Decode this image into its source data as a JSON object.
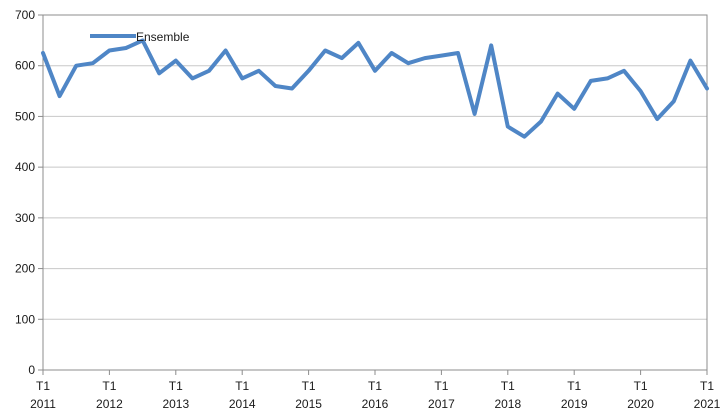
{
  "chart_data": {
    "type": "line",
    "title": "",
    "xlabel": "",
    "ylabel": "",
    "ylim": [
      0,
      700
    ],
    "yticks": [
      0,
      100,
      200,
      300,
      400,
      500,
      600,
      700
    ],
    "grid": "horizontal",
    "legend": "top-left",
    "xtick_labels": [
      {
        "quarter": "T1",
        "year": "2011"
      },
      {
        "quarter": "T1",
        "year": "2012"
      },
      {
        "quarter": "T1",
        "year": "2013"
      },
      {
        "quarter": "T1",
        "year": "2014"
      },
      {
        "quarter": "T1",
        "year": "2015"
      },
      {
        "quarter": "T1",
        "year": "2016"
      },
      {
        "quarter": "T1",
        "year": "2017"
      },
      {
        "quarter": "T1",
        "year": "2018"
      },
      {
        "quarter": "T1",
        "year": "2019"
      },
      {
        "quarter": "T1",
        "year": "2020"
      },
      {
        "quarter": "T1",
        "year": "2021"
      }
    ],
    "categories": [
      "T1 2011",
      "T2 2011",
      "T3 2011",
      "T4 2011",
      "T1 2012",
      "T2 2012",
      "T3 2012",
      "T4 2012",
      "T1 2013",
      "T2 2013",
      "T3 2013",
      "T4 2013",
      "T1 2014",
      "T2 2014",
      "T3 2014",
      "T4 2014",
      "T1 2015",
      "T2 2015",
      "T3 2015",
      "T4 2015",
      "T1 2016",
      "T2 2016",
      "T3 2016",
      "T4 2016",
      "T1 2017",
      "T2 2017",
      "T3 2017",
      "T4 2017",
      "T1 2018",
      "T2 2018",
      "T3 2018",
      "T4 2018",
      "T1 2019",
      "T2 2019",
      "T3 2019",
      "T4 2019",
      "T1 2020",
      "T2 2020",
      "T3 2020",
      "T4 2020",
      "T1 2021"
    ],
    "series": [
      {
        "name": "Ensemble",
        "color": "#4f86c6",
        "values": [
          625,
          540,
          600,
          605,
          630,
          635,
          650,
          585,
          610,
          575,
          590,
          630,
          575,
          590,
          560,
          555,
          590,
          630,
          615,
          645,
          590,
          625,
          605,
          615,
          620,
          625,
          505,
          640,
          480,
          460,
          490,
          545,
          515,
          570,
          575,
          590,
          550,
          495,
          530,
          610,
          555
        ]
      }
    ]
  }
}
